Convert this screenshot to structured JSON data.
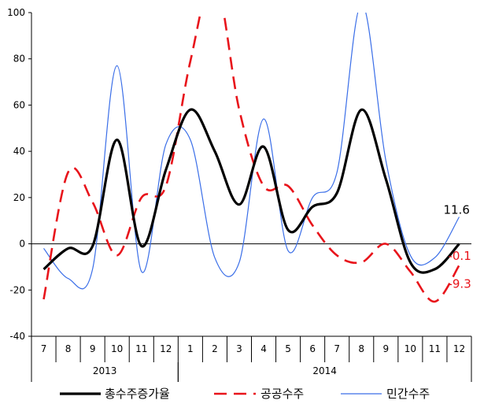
{
  "chart_data": {
    "type": "line",
    "categories": [
      "7",
      "8",
      "9",
      "10",
      "11",
      "12",
      "1",
      "2",
      "3",
      "4",
      "5",
      "6",
      "7",
      "8",
      "9",
      "10",
      "11",
      "12"
    ],
    "year_groups": [
      {
        "label": "2013",
        "start": 0,
        "end": 5
      },
      {
        "label": "2014",
        "start": 6,
        "end": 17
      }
    ],
    "ylim": [
      -40,
      100
    ],
    "yticks": [
      -40,
      -20,
      0,
      20,
      40,
      60,
      80,
      100
    ],
    "series": [
      {
        "name": "총수주증가율",
        "color": "#000000",
        "style": "solid",
        "width": 3.2,
        "values": [
          -11,
          -2,
          -1,
          45,
          -1,
          32,
          58,
          40,
          17,
          42,
          6,
          16,
          22,
          58,
          28,
          -8,
          -11,
          0
        ]
      },
      {
        "name": "공공수주",
        "color": "#e8141b",
        "style": "dashed",
        "width": 2.6,
        "values": [
          -24,
          31,
          18,
          -5,
          20,
          25,
          79,
          115,
          58,
          25,
          25,
          8,
          -5,
          -8,
          0,
          -12,
          -25,
          -9.3
        ]
      },
      {
        "name": "민간수주",
        "color": "#3a6ee8",
        "style": "solid",
        "width": 1.2,
        "values": [
          -2,
          -15,
          -11,
          77,
          -12,
          43,
          45,
          -6,
          -8,
          54,
          -3,
          20,
          31,
          104,
          36,
          -5,
          -6,
          11.6
        ]
      }
    ],
    "end_labels": [
      {
        "text": "11.6",
        "color": "#000000"
      },
      {
        "text": "-0.1",
        "color": "#e8141b"
      },
      {
        "text": "-9.3",
        "color": "#e8141b"
      }
    ],
    "legend_position": "bottom"
  }
}
